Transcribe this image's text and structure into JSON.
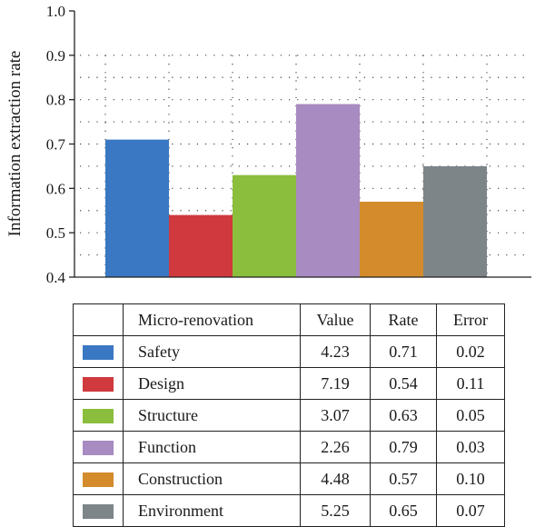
{
  "chart_data": {
    "type": "bar",
    "title": "",
    "xlabel": "",
    "ylabel": "Information extraction rate",
    "ylim": [
      0.4,
      1.0
    ],
    "yticks": [
      "0.4",
      "0.5",
      "0.6",
      "0.7",
      "0.8",
      "0.9",
      "1.0"
    ],
    "grid": "dotted",
    "categories": [
      "Safety",
      "Design",
      "Structure",
      "Function",
      "Construction",
      "Environment"
    ],
    "values": [
      0.71,
      0.54,
      0.63,
      0.79,
      0.57,
      0.65
    ],
    "colors": [
      "#3a78c3",
      "#d0393d",
      "#8bbe3c",
      "#a78bc1",
      "#d38b2b",
      "#7d8589"
    ]
  },
  "table": {
    "headers": [
      "Micro-renovation",
      "Value",
      "Rate",
      "Error"
    ],
    "rows": [
      {
        "name": "Safety",
        "value": "4.23",
        "rate": "0.71",
        "error": "0.02"
      },
      {
        "name": "Design",
        "value": "7.19",
        "rate": "0.54",
        "error": "0.11"
      },
      {
        "name": "Structure",
        "value": "3.07",
        "rate": "0.63",
        "error": "0.05"
      },
      {
        "name": "Function",
        "value": "2.26",
        "rate": "0.79",
        "error": "0.03"
      },
      {
        "name": "Construction",
        "value": "4.48",
        "rate": "0.57",
        "error": "0.10"
      },
      {
        "name": "Environment",
        "value": "5.25",
        "rate": "0.65",
        "error": "0.07"
      }
    ]
  }
}
